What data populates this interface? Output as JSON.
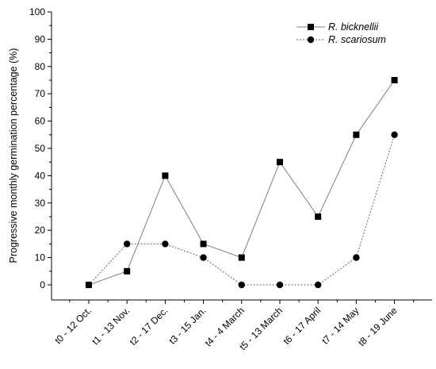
{
  "chart_data": {
    "type": "line",
    "ylabel": "Progressive monthly germination percentage (%)",
    "xlabel": "",
    "ylim": [
      0,
      100
    ],
    "yticks": [
      0,
      10,
      20,
      30,
      40,
      50,
      60,
      70,
      80,
      90,
      100
    ],
    "categories": [
      "t0 - 12 Oct.",
      "t1 - 13 Nov.",
      "t2 - 17 Dec.",
      "t3 - 15 Jan.",
      "t4 - 4 March",
      "t5 - 13 March",
      "t6 - 17 April",
      "t7 - 14 May",
      "t8 - 19 June"
    ],
    "series": [
      {
        "name": "R. bicknellii",
        "values": [
          0,
          5,
          40,
          15,
          10,
          45,
          25,
          55,
          75
        ],
        "marker": "square",
        "line": "solid",
        "line_color": "#808080"
      },
      {
        "name": "R. scariosum",
        "values": [
          0,
          15,
          15,
          10,
          0,
          0,
          0,
          10,
          55
        ],
        "marker": "circle",
        "line": "dotted",
        "line_color": "#666666"
      }
    ],
    "legend_position": "top-right",
    "grid": false
  }
}
